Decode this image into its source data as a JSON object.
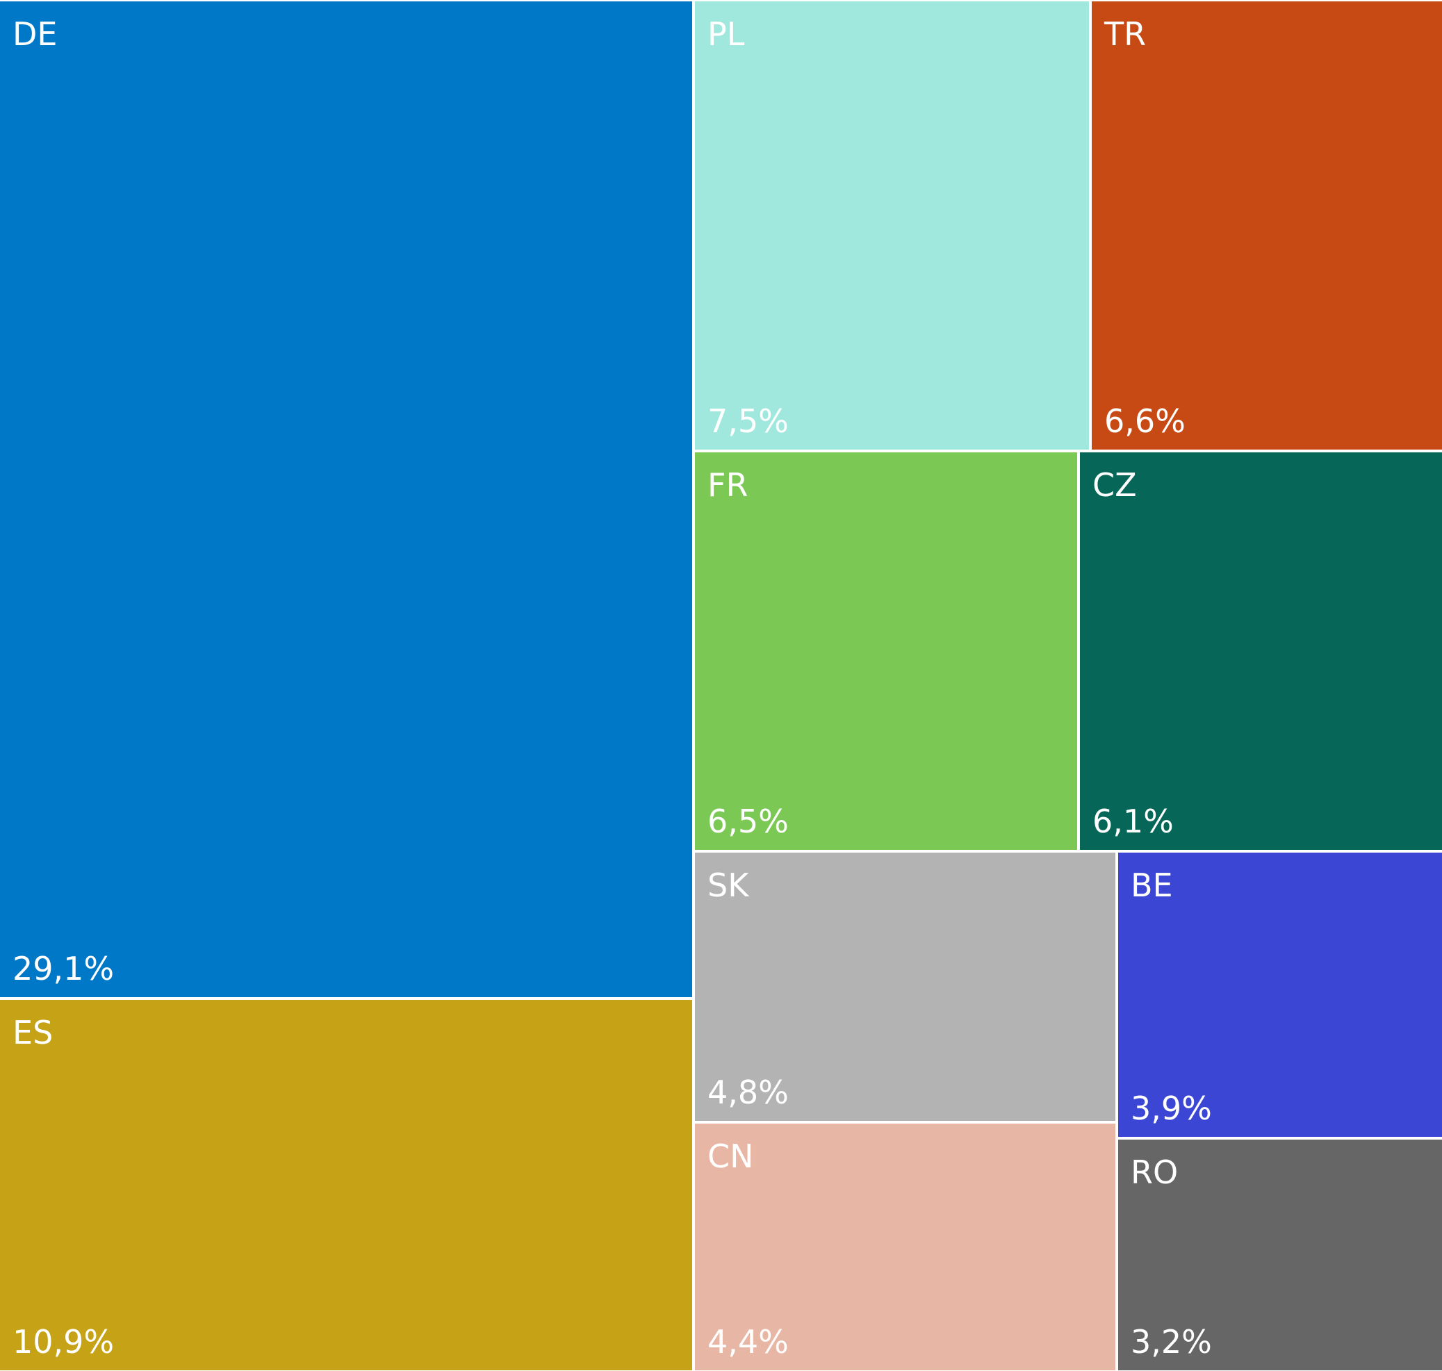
{
  "chart_data": {
    "type": "treemap",
    "items": [
      {
        "code": "DE",
        "value": 29.1,
        "label": "29,1%",
        "color": "#0078c8"
      },
      {
        "code": "ES",
        "value": 10.9,
        "label": "10,9%",
        "color": "#c5a216"
      },
      {
        "code": "PL",
        "value": 7.5,
        "label": "7,5%",
        "color": "#a0e8de"
      },
      {
        "code": "TR",
        "value": 6.6,
        "label": "6,6%",
        "color": "#c74a14"
      },
      {
        "code": "FR",
        "value": 6.5,
        "label": "6,5%",
        "color": "#7bc855"
      },
      {
        "code": "CZ",
        "value": 6.1,
        "label": "6,1%",
        "color": "#066658"
      },
      {
        "code": "SK",
        "value": 4.8,
        "label": "4,8%",
        "color": "#b3b3b3"
      },
      {
        "code": "CN",
        "value": 4.4,
        "label": "4,4%",
        "color": "#e8b6a4"
      },
      {
        "code": "BE",
        "value": 3.9,
        "label": "3,9%",
        "color": "#3b47d4"
      },
      {
        "code": "RO",
        "value": 3.2,
        "label": "3,2%",
        "color": "#666666"
      }
    ]
  }
}
